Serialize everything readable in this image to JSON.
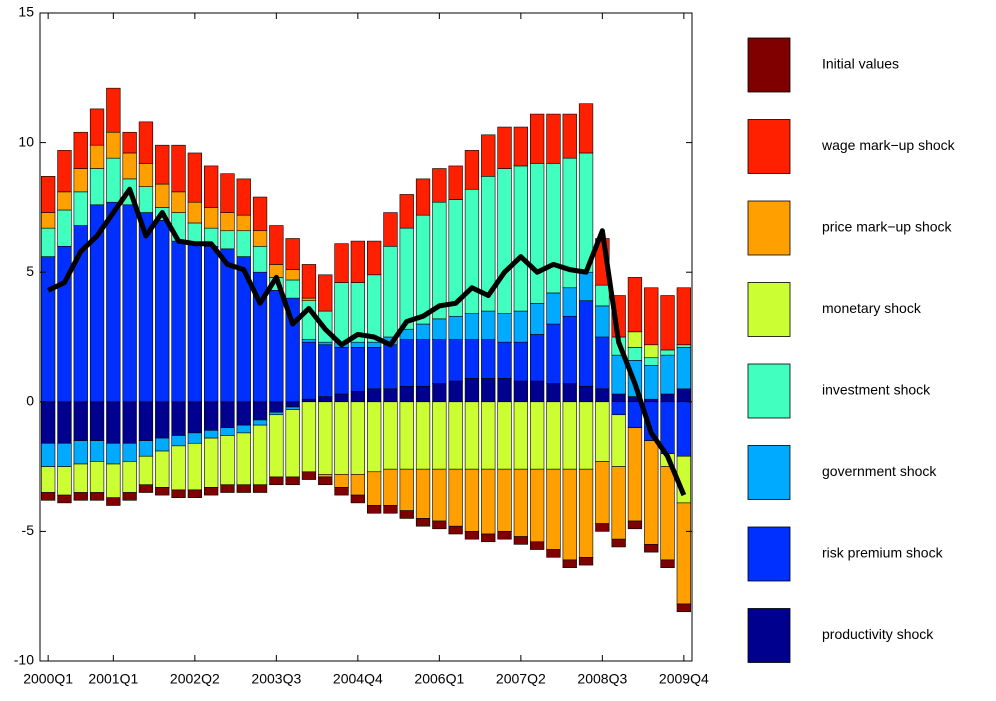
{
  "chart_data": {
    "type": "stacked-bar",
    "categories": [
      "2000Q1",
      null,
      null,
      null,
      "2001Q1",
      null,
      null,
      null,
      null,
      "2002Q2",
      null,
      null,
      null,
      null,
      "2003Q3",
      null,
      null,
      null,
      null,
      "2004Q4",
      null,
      null,
      null,
      null,
      "2006Q1",
      null,
      null,
      null,
      null,
      "2007Q2",
      null,
      null,
      null,
      null,
      "2008Q3",
      null,
      null,
      null,
      null,
      "2009Q4"
    ],
    "ylim": [
      -10,
      15
    ],
    "yticks": [
      -10,
      -5,
      0,
      5,
      10,
      15
    ],
    "legend": "right",
    "series": [
      {
        "name": "productivity shock",
        "color": "#00008f",
        "values": [
          -1.6,
          -1.6,
          -1.5,
          -1.5,
          -1.6,
          -1.6,
          -1.5,
          -1.4,
          -1.3,
          -1.2,
          -1.1,
          -1.0,
          -0.9,
          -0.7,
          -0.4,
          -0.2,
          0.1,
          0.2,
          0.3,
          0.4,
          0.5,
          0.5,
          0.6,
          0.6,
          0.7,
          0.8,
          0.9,
          0.9,
          0.9,
          0.8,
          0.8,
          0.7,
          0.7,
          0.6,
          0.5,
          0.3,
          0.2,
          0.1,
          0.3,
          0.5
        ]
      },
      {
        "name": "risk premium shock",
        "color": "#0030ff",
        "values": [
          5.6,
          6.0,
          6.8,
          7.6,
          7.7,
          7.6,
          7.3,
          7.0,
          6.2,
          6.1,
          6.0,
          5.9,
          5.6,
          5.0,
          4.3,
          4.0,
          2.2,
          2.0,
          1.8,
          1.7,
          1.6,
          1.7,
          1.8,
          1.8,
          1.7,
          1.6,
          1.5,
          1.5,
          1.4,
          1.5,
          1.8,
          2.3,
          2.6,
          3.3,
          2.0,
          -0.5,
          -1.0,
          -1.5,
          -2.0,
          -2.1
        ]
      },
      {
        "name": "government shock",
        "color": "#00aaff",
        "values": [
          -0.9,
          -0.9,
          -0.9,
          -0.8,
          -0.8,
          -0.7,
          -0.6,
          -0.5,
          -0.4,
          -0.4,
          -0.3,
          -0.3,
          -0.3,
          -0.2,
          -0.1,
          -0.1,
          0.1,
          0.1,
          0.2,
          0.2,
          0.2,
          0.3,
          0.4,
          0.6,
          0.8,
          0.9,
          1.0,
          1.1,
          1.1,
          1.2,
          1.2,
          1.2,
          1.1,
          1.1,
          1.2,
          1.5,
          1.4,
          1.3,
          1.5,
          1.6
        ]
      },
      {
        "name": "investment shock",
        "color": "#40ffbf",
        "values": [
          1.1,
          1.4,
          1.3,
          1.4,
          1.7,
          1.0,
          1.0,
          0.5,
          1.1,
          0.8,
          0.7,
          0.7,
          1.0,
          1.0,
          0.5,
          0.7,
          1.5,
          1.2,
          2.3,
          2.3,
          2.6,
          3.5,
          3.9,
          4.2,
          4.5,
          4.5,
          4.8,
          5.2,
          5.6,
          5.6,
          5.4,
          5.0,
          5.0,
          4.6,
          0.8,
          0.7,
          0.5,
          0.3,
          0.2,
          0.1
        ]
      },
      {
        "name": "monetary shock",
        "color": "#ccff33",
        "values": [
          -1.0,
          -1.1,
          -1.1,
          -1.2,
          -1.3,
          -1.2,
          -1.1,
          -1.4,
          -1.7,
          -1.8,
          -1.9,
          -1.9,
          -2.0,
          -2.3,
          -2.4,
          -2.6,
          -2.7,
          -2.8,
          -2.8,
          -2.8,
          -2.7,
          -2.6,
          -2.6,
          -2.6,
          -2.6,
          -2.6,
          -2.6,
          -2.6,
          -2.6,
          -2.6,
          -2.6,
          -2.6,
          -2.6,
          -2.6,
          -2.3,
          -2.0,
          0.6,
          0.5,
          -0.5,
          -1.8
        ]
      },
      {
        "name": "price mark−up shock",
        "color": "#ffa000",
        "values": [
          0.6,
          0.7,
          0.9,
          0.9,
          1.0,
          1.0,
          0.9,
          0.9,
          0.8,
          0.8,
          0.8,
          0.7,
          0.6,
          0.6,
          0.5,
          0.4,
          0.1,
          -0.1,
          -0.5,
          -0.8,
          -1.3,
          -1.4,
          -1.6,
          -1.9,
          -2.0,
          -2.2,
          -2.4,
          -2.5,
          -2.4,
          -2.6,
          -2.8,
          -3.1,
          -3.5,
          -3.4,
          -2.4,
          -2.8,
          -3.6,
          -4.0,
          -3.6,
          -3.9
        ]
      },
      {
        "name": "wage mark−up shock",
        "color": "#ff2000",
        "values": [
          1.4,
          1.6,
          1.4,
          1.4,
          1.7,
          0.8,
          1.6,
          1.5,
          1.8,
          1.9,
          1.6,
          1.5,
          1.4,
          1.3,
          1.5,
          1.2,
          1.3,
          1.4,
          1.5,
          1.6,
          1.3,
          1.3,
          1.3,
          1.4,
          1.3,
          1.3,
          1.5,
          1.6,
          1.6,
          1.5,
          1.9,
          1.9,
          1.7,
          1.9,
          1.8,
          1.6,
          2.1,
          2.2,
          2.1,
          2.2
        ]
      },
      {
        "name": "Initial values",
        "color": "#800000",
        "values": [
          -0.3,
          -0.3,
          -0.3,
          -0.3,
          -0.3,
          -0.3,
          -0.3,
          -0.3,
          -0.3,
          -0.3,
          -0.3,
          -0.3,
          -0.3,
          -0.3,
          -0.3,
          -0.3,
          -0.3,
          -0.3,
          -0.3,
          -0.3,
          -0.3,
          -0.3,
          -0.3,
          -0.3,
          -0.3,
          -0.3,
          -0.3,
          -0.3,
          -0.3,
          -0.3,
          -0.3,
          -0.3,
          -0.3,
          -0.3,
          -0.3,
          -0.3,
          -0.3,
          -0.3,
          -0.3,
          -0.3
        ]
      }
    ],
    "line": {
      "color": "#000000",
      "values": [
        4.3,
        4.6,
        5.8,
        6.4,
        7.3,
        8.2,
        6.4,
        7.3,
        6.2,
        6.1,
        6.1,
        5.3,
        5.1,
        3.8,
        4.8,
        3.0,
        3.6,
        2.8,
        2.2,
        2.6,
        2.5,
        2.2,
        3.1,
        3.3,
        3.7,
        3.8,
        4.4,
        4.1,
        5.0,
        5.6,
        5.0,
        5.3,
        5.1,
        5.0,
        6.6,
        2.3,
        0.7,
        -1.2,
        -2.1,
        -3.6
      ]
    }
  }
}
